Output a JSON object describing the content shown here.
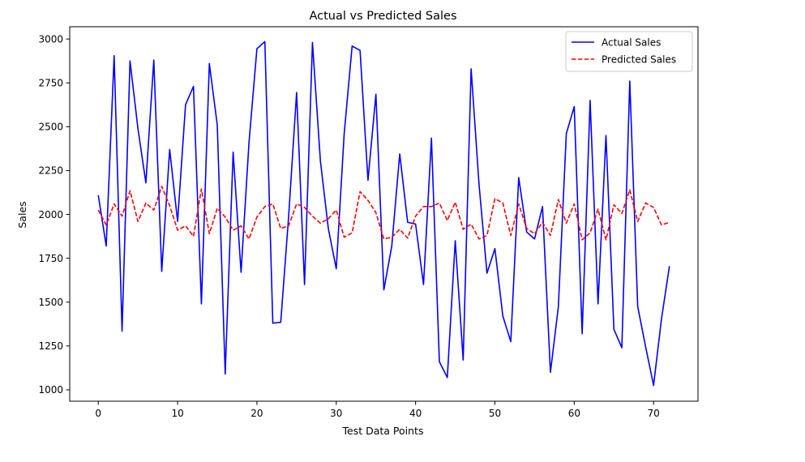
{
  "chart_data": {
    "type": "line",
    "title": "Actual vs Predicted Sales",
    "xlabel": "Test Data Points",
    "ylabel": "Sales",
    "xlim": [
      -3.6,
      75.6
    ],
    "ylim": [
      935,
      3070
    ],
    "xticks": [
      0,
      10,
      20,
      30,
      40,
      50,
      60,
      70
    ],
    "yticks": [
      1000,
      1250,
      1500,
      1750,
      2000,
      2250,
      2500,
      2750,
      3000
    ],
    "grid": false,
    "legend_position": "top-right",
    "x": [
      0,
      1,
      2,
      3,
      4,
      5,
      6,
      7,
      8,
      9,
      10,
      11,
      12,
      13,
      14,
      15,
      16,
      17,
      18,
      19,
      20,
      21,
      22,
      23,
      24,
      25,
      26,
      27,
      28,
      29,
      30,
      31,
      32,
      33,
      34,
      35,
      36,
      37,
      38,
      39,
      40,
      41,
      42,
      43,
      44,
      45,
      46,
      47,
      48,
      49,
      50,
      51,
      52,
      53,
      54,
      55,
      56,
      57,
      58,
      59,
      60,
      61,
      62,
      63,
      64,
      65,
      66,
      67,
      68,
      69,
      70,
      71,
      72
    ],
    "series": [
      {
        "name": "Actual Sales",
        "color": "#0000ff",
        "style": "solid",
        "values": [
          2110,
          1820,
          2905,
          1335,
          2875,
          2490,
          2180,
          2880,
          1675,
          2370,
          1960,
          2625,
          2730,
          1490,
          2860,
          2510,
          1090,
          2355,
          1670,
          2410,
          2945,
          2985,
          1380,
          1385,
          1990,
          2695,
          1600,
          2980,
          2305,
          1920,
          1690,
          2460,
          2960,
          2935,
          2195,
          2685,
          1570,
          1820,
          2345,
          1955,
          1945,
          1600,
          2435,
          1160,
          1070,
          1850,
          1170,
          2830,
          2170,
          1665,
          1805,
          1420,
          1275,
          2210,
          1900,
          1860,
          2045,
          1100,
          1475,
          2460,
          2615,
          1320,
          2650,
          1490,
          2450,
          1345,
          1240,
          2760,
          1475,
          1245,
          1025,
          1405,
          1705
        ]
      },
      {
        "name": "Predicted Sales",
        "color": "#ff0000",
        "style": "dashed",
        "values": [
          2025,
          1940,
          2060,
          1990,
          2135,
          1960,
          2065,
          2025,
          2160,
          2050,
          1910,
          1935,
          1875,
          2145,
          1890,
          2035,
          1985,
          1910,
          1935,
          1860,
          1985,
          2045,
          2060,
          1920,
          1935,
          2060,
          2040,
          1990,
          1950,
          1975,
          2025,
          1870,
          1895,
          2130,
          2080,
          2010,
          1860,
          1870,
          1915,
          1865,
          1990,
          2045,
          2045,
          2065,
          1965,
          2070,
          1915,
          1945,
          1860,
          1880,
          2090,
          2065,
          1880,
          2060,
          1920,
          1890,
          1955,
          1880,
          2085,
          1950,
          2060,
          1855,
          1895,
          2030,
          1855,
          2055,
          2005,
          2140,
          1960,
          2065,
          2040,
          1940,
          1955
        ]
      }
    ]
  }
}
